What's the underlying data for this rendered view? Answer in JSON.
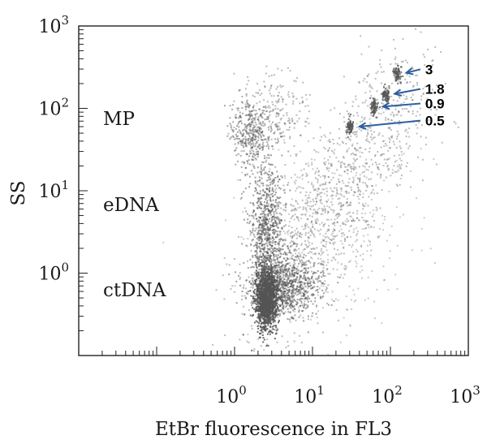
{
  "chart_data": {
    "type": "scatter",
    "xlabel": "EtBr fluorescence in FL3",
    "ylabel": "SS",
    "xscale": "log",
    "yscale": "log",
    "xlim": [
      0.01,
      1000
    ],
    "ylim": [
      0.1,
      1000
    ],
    "x_ticks": [
      {
        "base": "10",
        "exp": "0",
        "value": 1
      },
      {
        "base": "10",
        "exp": "1",
        "value": 10
      },
      {
        "base": "10",
        "exp": "2",
        "value": 100
      },
      {
        "base": "10",
        "exp": "3",
        "value": 1000
      }
    ],
    "y_ticks": [
      {
        "base": "10",
        "exp": "0",
        "value": 1
      },
      {
        "base": "10",
        "exp": "1",
        "value": 10
      },
      {
        "base": "10",
        "exp": "2",
        "value": 100
      },
      {
        "base": "10",
        "exp": "3",
        "value": 1000
      }
    ],
    "grid": false,
    "populations": [
      {
        "label": "MP",
        "x_center": 1.6,
        "y_center": 55,
        "label_y": 75
      },
      {
        "label": "eDNA",
        "x_center": 2.6,
        "y_center": 4,
        "label_y": 6.8
      },
      {
        "label": "ctDNA",
        "x_center": 2.6,
        "y_center": 0.5,
        "label_y": 0.63
      }
    ],
    "calibration_beads": [
      {
        "label": "3",
        "x": 120,
        "y": 270
      },
      {
        "label": "1.8",
        "x": 85,
        "y": 150
      },
      {
        "label": "0.9",
        "x": 60,
        "y": 105
      },
      {
        "label": "0.5",
        "x": 30,
        "y": 60
      }
    ],
    "point_color": "#555555",
    "arrow_color": "#2e5fa0"
  }
}
